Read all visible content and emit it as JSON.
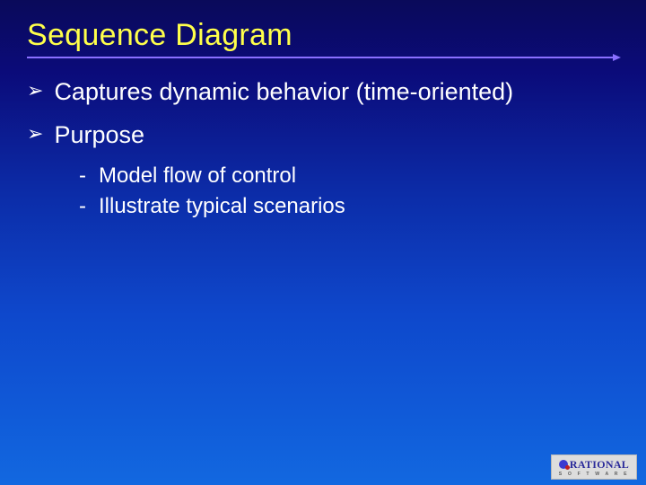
{
  "slide": {
    "title": "Sequence Diagram",
    "title_color": "#ffff4a",
    "title_fontsize": 34,
    "underline_color": "#8a6fff",
    "background_gradient": [
      "#0a0a5a",
      "#0b0b7a",
      "#0c2ca8",
      "#0e48cc",
      "#105ad8",
      "#1268e0"
    ],
    "bullets": [
      {
        "glyph": "➢",
        "text": "Captures dynamic behavior (time-oriented)",
        "subs": []
      },
      {
        "glyph": "➢",
        "text": "Purpose",
        "subs": [
          {
            "glyph": "-",
            "text": "Model flow of control"
          },
          {
            "glyph": "-",
            "text": "Illustrate typical scenarios"
          }
        ]
      }
    ],
    "bullet_fontsize": 27,
    "sub_fontsize": 24,
    "text_color": "#ffffff"
  },
  "logo": {
    "word": "RATIONAL",
    "sub": "S O F T W A R E",
    "word_color": "#2a2a9a",
    "bg_color": "#dddddd"
  }
}
